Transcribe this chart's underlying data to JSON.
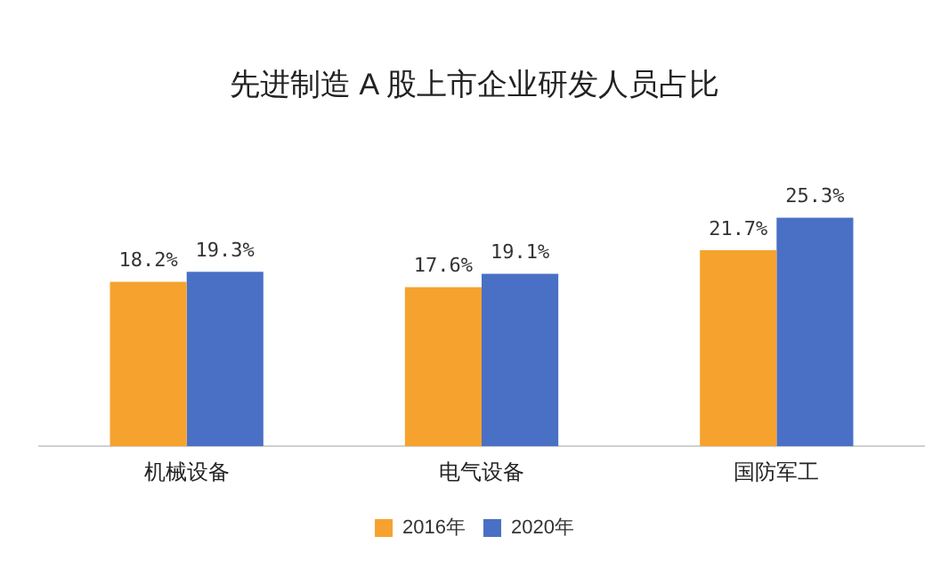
{
  "chart_data": {
    "type": "bar",
    "title": "先进制造 A 股上市企业研发人员占比",
    "categories": [
      "机械设备",
      "电气设备",
      "国防军工"
    ],
    "series": [
      {
        "name": "2016年",
        "color": "#f5a32e",
        "values": [
          18.2,
          17.6,
          21.7
        ],
        "value_labels": [
          "18.2%",
          "17.6%",
          "21.7%"
        ]
      },
      {
        "name": "2020年",
        "color": "#4a70c5",
        "values": [
          19.3,
          19.1,
          25.3
        ],
        "value_labels": [
          "19.3%",
          "19.1%",
          "25.3%"
        ]
      }
    ],
    "relative": false,
    "grid": false,
    "legend": "bottom"
  }
}
